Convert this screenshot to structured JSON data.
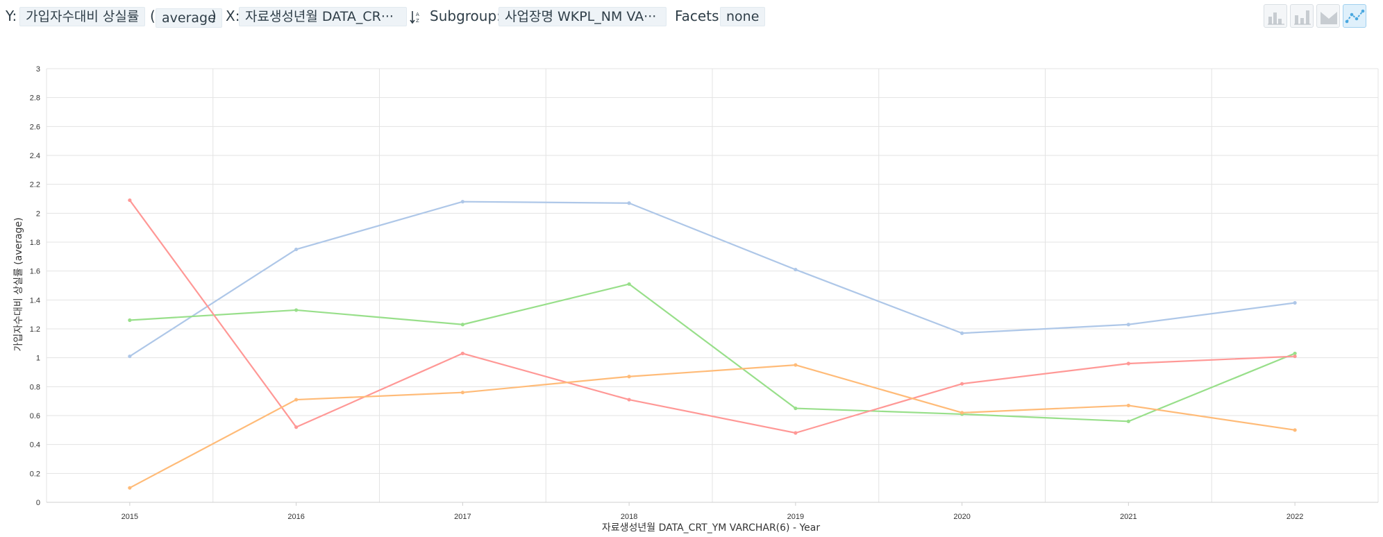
{
  "toolbar": {
    "y_label": "Y:",
    "y_field": "가입자수대비 상실률",
    "paren_open": "(",
    "y_agg": "average",
    "paren_close": ")",
    "x_label": "X:",
    "x_field": "자료생성년월 DATA_CR···",
    "subgroup_label": "Subgroup:",
    "subgroup_field": "사업장명 WKPL_NM VA···",
    "facets_label": "Facets:",
    "facets_value": "none",
    "sort_icon": "sort-alpha-icon",
    "chart_types": [
      {
        "name": "bar-chart-icon",
        "active": false
      },
      {
        "name": "stacked-bar-chart-icon",
        "active": false
      },
      {
        "name": "area-chart-icon",
        "active": false
      },
      {
        "name": "line-chart-icon",
        "active": true
      }
    ]
  },
  "chart_data": {
    "type": "line",
    "title": "",
    "xlabel": "자료생성년월 DATA_CRT_YM VARCHAR(6) - Year",
    "ylabel": "가입자수대비 상실률 (average)",
    "x": [
      "2015",
      "2016",
      "2017",
      "2018",
      "2019",
      "2020",
      "2021",
      "2022"
    ],
    "ylim": [
      0,
      3
    ],
    "yticks": [
      "0",
      "0.2",
      "0.4",
      "0.6",
      "0.8",
      "1",
      "1.2",
      "1.4",
      "1.6",
      "1.8",
      "2",
      "2.2",
      "2.4",
      "2.6",
      "2.8",
      "3"
    ],
    "grid": true,
    "legend": "none",
    "series": [
      {
        "color": "#aec7e8",
        "values": [
          1.01,
          1.75,
          2.08,
          2.07,
          1.61,
          1.17,
          1.23,
          1.38
        ]
      },
      {
        "color": "#98df8a",
        "values": [
          1.26,
          1.33,
          1.23,
          1.51,
          0.65,
          0.61,
          0.56,
          1.03
        ]
      },
      {
        "color": "#ff9896",
        "values": [
          2.09,
          0.52,
          1.03,
          0.71,
          0.48,
          0.82,
          0.96,
          1.01
        ]
      },
      {
        "color": "#ffbb78",
        "values": [
          0.1,
          0.71,
          0.76,
          0.87,
          0.95,
          0.62,
          0.67,
          0.5
        ]
      }
    ]
  }
}
